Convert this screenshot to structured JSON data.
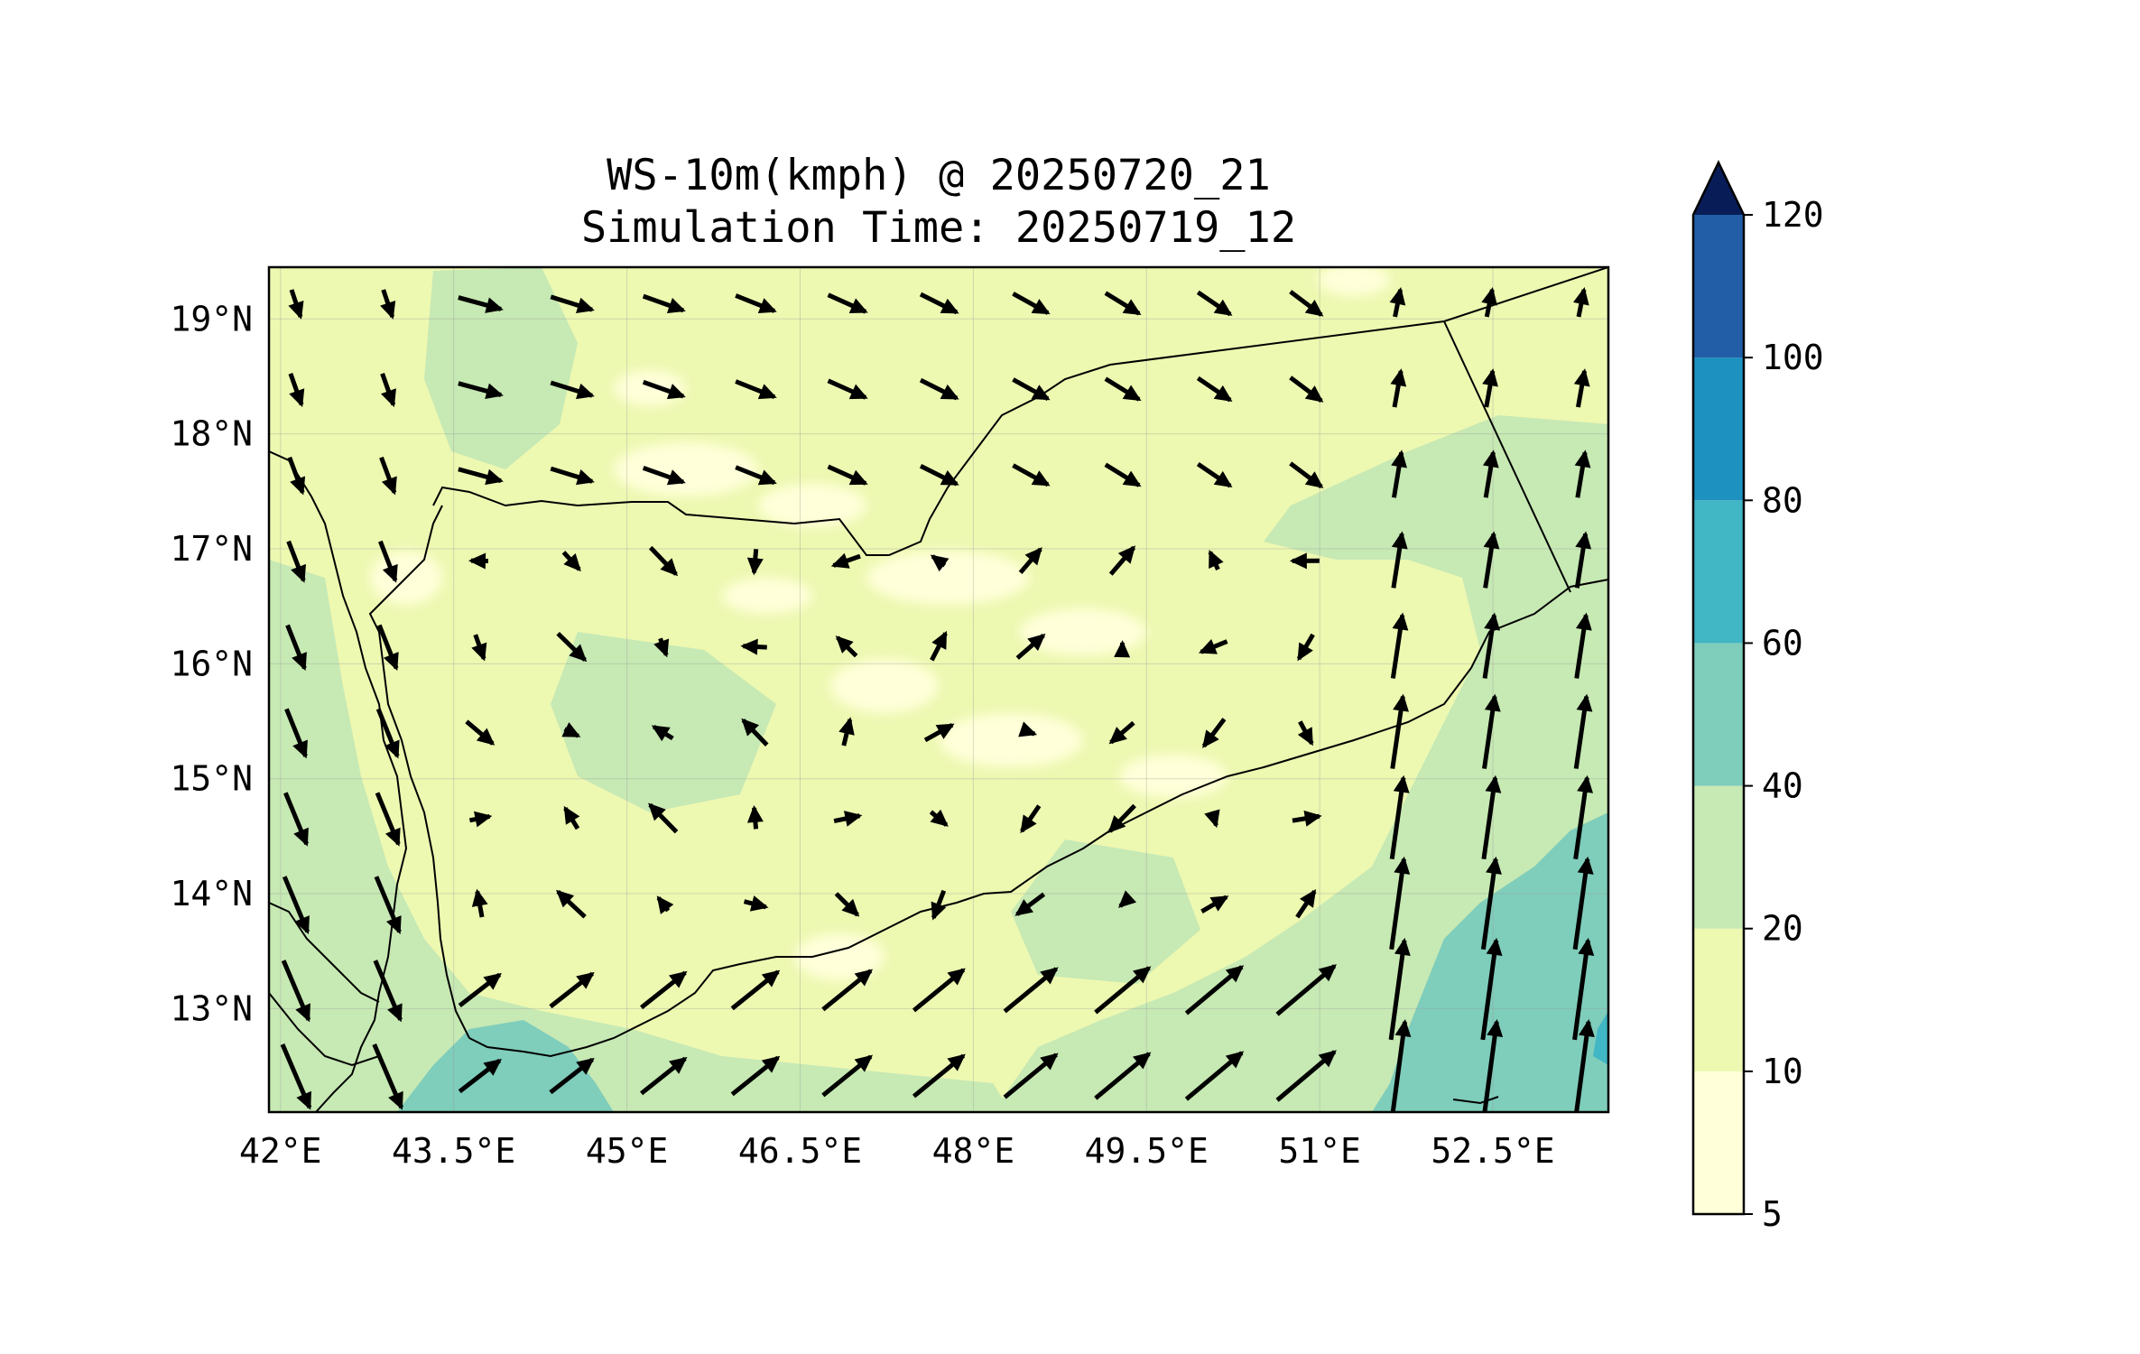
{
  "title": {
    "line1": "WS-10m(kmph) @ 20250720_21",
    "line2": "Simulation Time: 20250719_12"
  },
  "map": {
    "lon_range": [
      41.9,
      53.5
    ],
    "lat_range": [
      12.1,
      19.45
    ],
    "x_ticks": [
      {
        "value": 42.0,
        "label": "42°E"
      },
      {
        "value": 43.5,
        "label": "43.5°E"
      },
      {
        "value": 45.0,
        "label": "45°E"
      },
      {
        "value": 46.5,
        "label": "46.5°E"
      },
      {
        "value": 48.0,
        "label": "48°E"
      },
      {
        "value": 49.5,
        "label": "49.5°E"
      },
      {
        "value": 51.0,
        "label": "51°E"
      },
      {
        "value": 52.5,
        "label": "52.5°E"
      }
    ],
    "y_ticks": [
      {
        "value": 19,
        "label": "19°N"
      },
      {
        "value": 18,
        "label": "18°N"
      },
      {
        "value": 17,
        "label": "17°N"
      },
      {
        "value": 16,
        "label": "16°N"
      },
      {
        "value": 15,
        "label": "15°N"
      },
      {
        "value": 14,
        "label": "14°N"
      },
      {
        "value": 13,
        "label": "13°N"
      }
    ],
    "gridlines": true
  },
  "colorbar": {
    "levels": [
      5,
      10,
      20,
      40,
      60,
      80,
      100,
      120
    ],
    "labels": [
      "5",
      "10",
      "20",
      "40",
      "60",
      "80",
      "100",
      "120"
    ],
    "colors": [
      "#ffffd9",
      "#edf8b1",
      "#c7e9b4",
      "#7fcdbb",
      "#41b6c4",
      "#1d91c0",
      "#225ea8",
      "#253494"
    ],
    "extend_color": "#081d58",
    "extend": "max"
  },
  "colors": {
    "land_border": "#000000",
    "arrow": "#000000"
  }
}
